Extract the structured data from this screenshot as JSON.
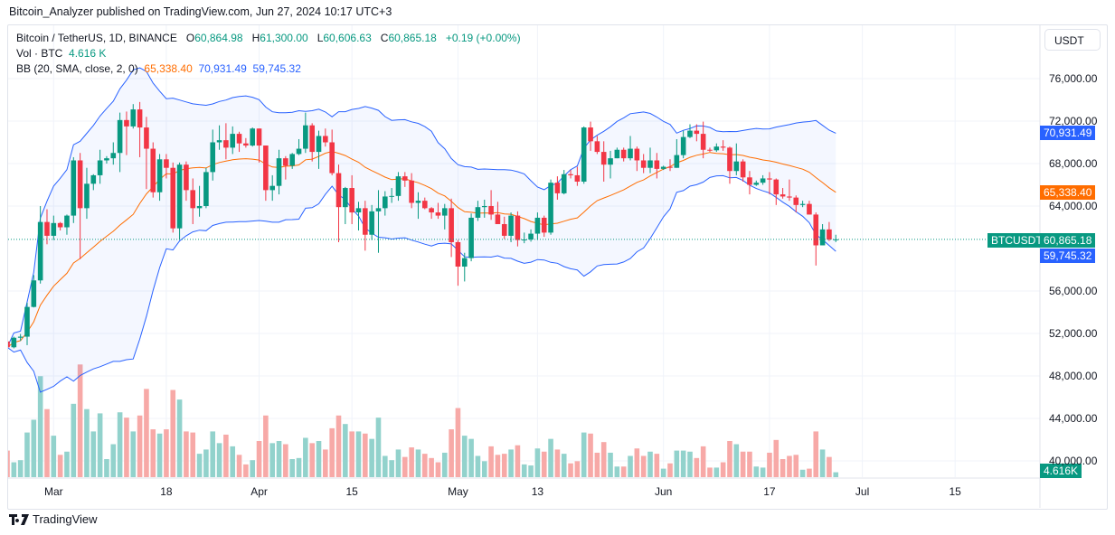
{
  "publisher_line": "Bitcoin_Analyzer published on TradingView.com, Jun 27, 2024 10:17 UTC+3",
  "legend": {
    "symbol": "Bitcoin / TetherUS, 1D, BINANCE",
    "o_label": "O",
    "o": "60,864.98",
    "h_label": "H",
    "h": "61,300.00",
    "l_label": "L",
    "l": "60,606.63",
    "c_label": "C",
    "c": "60,865.18",
    "change": "+0.19 (+0.00%)",
    "vol_label": "Vol · BTC",
    "vol": "4.616 K",
    "bb_label": "BB (20, SMA, close, 2, 0)",
    "bb_basis": "65,338.40",
    "bb_upper": "70,931.49",
    "bb_lower": "59,745.32"
  },
  "currency_button": "USDT",
  "price_tags": {
    "upper": "70,931.49",
    "basis": "65,338.40",
    "last": "60,865.18",
    "symbol": "BTCUSDT",
    "lower": "59,745.32",
    "volume": "4.616K"
  },
  "brand": "TradingView",
  "colors": {
    "up": "#089981",
    "down": "#f23645",
    "vol_up": "#92d2cc",
    "vol_down": "#f7a9a7",
    "bb_band": "#2962ff",
    "bb_basis": "#ff6d00"
  },
  "chart_data": {
    "type": "candlestick",
    "yticks": [
      "76,000.00",
      "72,000.00",
      "68,000.00",
      "64,000.00",
      "56,000.00",
      "52,000.00",
      "48,000.00",
      "44,000.00",
      "40,000.00"
    ],
    "ytick_values": [
      76000,
      72000,
      68000,
      64000,
      56000,
      52000,
      48000,
      44000,
      40000
    ],
    "xticks": [
      {
        "label": "Mar",
        "date": "2024-03-01"
      },
      {
        "label": "18",
        "date": "2024-03-18"
      },
      {
        "label": "Apr",
        "date": "2024-04-01"
      },
      {
        "label": "15",
        "date": "2024-04-15"
      },
      {
        "label": "May",
        "date": "2024-05-01"
      },
      {
        "label": "13",
        "date": "2024-05-13"
      },
      {
        "label": "Jun",
        "date": "2024-06-01"
      },
      {
        "label": "17",
        "date": "2024-06-17"
      },
      {
        "label": "Jul",
        "date": "2024-07-01"
      },
      {
        "label": "15",
        "date": "2024-07-15"
      }
    ],
    "indicator": {
      "name": "BB",
      "length": 20,
      "ma": "SMA",
      "source": "close",
      "mult": 2,
      "offset": 0
    },
    "volume_unit": "K BTC",
    "grid": true,
    "candles_columns": [
      "date",
      "open",
      "high",
      "low",
      "close",
      "volume"
    ],
    "candles": [
      [
        "2024-02-23",
        51250,
        51500,
        50500,
        50700,
        25
      ],
      [
        "2024-02-24",
        50700,
        51700,
        50600,
        51600,
        14
      ],
      [
        "2024-02-25",
        51600,
        51950,
        51300,
        51700,
        16
      ],
      [
        "2024-02-26",
        51700,
        54900,
        50900,
        54500,
        42
      ],
      [
        "2024-02-27",
        54500,
        57500,
        54450,
        57000,
        54
      ],
      [
        "2024-02-28",
        57000,
        64000,
        56700,
        62500,
        95
      ],
      [
        "2024-02-29",
        62500,
        63700,
        60400,
        61200,
        64
      ],
      [
        "2024-03-01",
        61200,
        63100,
        60800,
        62400,
        39
      ],
      [
        "2024-03-02",
        62400,
        62500,
        61700,
        62000,
        21
      ],
      [
        "2024-03-03",
        62000,
        63200,
        61300,
        63100,
        24
      ],
      [
        "2024-03-04",
        63100,
        68600,
        62400,
        68300,
        69
      ],
      [
        "2024-03-05",
        68300,
        69000,
        59000,
        63800,
        106
      ],
      [
        "2024-03-06",
        63800,
        67600,
        62800,
        66100,
        64
      ],
      [
        "2024-03-07",
        66100,
        67000,
        65500,
        66900,
        43
      ],
      [
        "2024-03-08",
        66900,
        69300,
        66100,
        68300,
        60
      ],
      [
        "2024-03-09",
        68300,
        68700,
        68000,
        68500,
        17
      ],
      [
        "2024-03-10",
        68500,
        70000,
        67900,
        69000,
        31
      ],
      [
        "2024-03-11",
        69000,
        72800,
        67200,
        72100,
        61
      ],
      [
        "2024-03-12",
        72100,
        72900,
        68800,
        71500,
        56
      ],
      [
        "2024-03-13",
        71500,
        73600,
        71300,
        73100,
        43
      ],
      [
        "2024-03-14",
        73100,
        73800,
        68600,
        71400,
        58
      ],
      [
        "2024-03-15",
        71400,
        72400,
        65600,
        69400,
        83
      ],
      [
        "2024-03-16",
        69400,
        70000,
        64800,
        65300,
        45
      ],
      [
        "2024-03-17",
        65300,
        68900,
        64500,
        68400,
        41
      ],
      [
        "2024-03-18",
        68400,
        68900,
        66600,
        67600,
        45
      ],
      [
        "2024-03-19",
        67600,
        68100,
        61500,
        61900,
        82
      ],
      [
        "2024-03-20",
        61900,
        68100,
        60800,
        67900,
        73
      ],
      [
        "2024-03-21",
        67900,
        68200,
        64500,
        65500,
        43
      ],
      [
        "2024-03-22",
        65500,
        66600,
        62300,
        63800,
        42
      ],
      [
        "2024-03-23",
        63800,
        65900,
        63000,
        64000,
        22
      ],
      [
        "2024-03-24",
        64000,
        67600,
        63800,
        67200,
        26
      ],
      [
        "2024-03-25",
        67200,
        71200,
        66400,
        70000,
        43
      ],
      [
        "2024-03-26",
        70000,
        71600,
        69300,
        70200,
        32
      ],
      [
        "2024-03-27",
        70200,
        71800,
        68400,
        69500,
        40
      ],
      [
        "2024-03-28",
        69500,
        71500,
        68900,
        70800,
        29
      ],
      [
        "2024-03-29",
        70800,
        71000,
        69100,
        69900,
        21
      ],
      [
        "2024-03-30",
        69900,
        70400,
        69500,
        69700,
        12
      ],
      [
        "2024-03-31",
        69700,
        71400,
        69600,
        71300,
        16
      ],
      [
        "2024-04-01",
        71300,
        71300,
        68100,
        69700,
        34
      ],
      [
        "2024-04-02",
        69700,
        69700,
        64500,
        65500,
        58
      ],
      [
        "2024-04-03",
        65500,
        66900,
        64500,
        65900,
        32
      ],
      [
        "2024-04-04",
        65900,
        69300,
        65100,
        68500,
        34
      ],
      [
        "2024-04-05",
        68500,
        68700,
        66500,
        67800,
        31
      ],
      [
        "2024-04-06",
        67800,
        69000,
        67500,
        68900,
        17
      ],
      [
        "2024-04-07",
        68900,
        70300,
        68800,
        69400,
        18
      ],
      [
        "2024-04-08",
        69400,
        72800,
        69000,
        71600,
        37
      ],
      [
        "2024-04-09",
        71600,
        71800,
        68200,
        69100,
        32
      ],
      [
        "2024-04-10",
        69100,
        71100,
        67500,
        70600,
        34
      ],
      [
        "2024-04-11",
        70600,
        71300,
        69600,
        70000,
        26
      ],
      [
        "2024-04-12",
        70000,
        71200,
        66900,
        67100,
        46
      ],
      [
        "2024-04-13",
        67100,
        67900,
        60600,
        63900,
        58
      ],
      [
        "2024-04-14",
        63900,
        65800,
        62300,
        65700,
        50
      ],
      [
        "2024-04-15",
        65700,
        66900,
        62300,
        63400,
        43
      ],
      [
        "2024-04-16",
        63400,
        64400,
        61700,
        63800,
        43
      ],
      [
        "2024-04-17",
        63800,
        64500,
        59800,
        61300,
        41
      ],
      [
        "2024-04-18",
        61300,
        64100,
        60800,
        63500,
        36
      ],
      [
        "2024-04-19",
        63500,
        65500,
        59600,
        63800,
        56
      ],
      [
        "2024-04-20",
        63800,
        65400,
        63100,
        64900,
        20
      ],
      [
        "2024-04-21",
        64900,
        65700,
        64300,
        64950,
        16
      ],
      [
        "2024-04-22",
        64950,
        67200,
        64500,
        66800,
        26
      ],
      [
        "2024-04-23",
        66800,
        67200,
        65800,
        66400,
        19
      ],
      [
        "2024-04-24",
        66400,
        67100,
        63800,
        64300,
        28
      ],
      [
        "2024-04-25",
        64300,
        65300,
        62800,
        64500,
        26
      ],
      [
        "2024-04-26",
        64500,
        64800,
        63700,
        63800,
        22
      ],
      [
        "2024-04-27",
        63800,
        63900,
        62800,
        63400,
        18
      ],
      [
        "2024-04-28",
        63400,
        64300,
        62800,
        63100,
        14
      ],
      [
        "2024-04-29",
        63100,
        64200,
        61800,
        63800,
        23
      ],
      [
        "2024-04-30",
        63800,
        64700,
        59200,
        60600,
        45
      ],
      [
        "2024-05-01",
        60600,
        60800,
        56500,
        58300,
        65
      ],
      [
        "2024-05-02",
        58300,
        59600,
        56900,
        59100,
        39
      ],
      [
        "2024-05-03",
        59100,
        63300,
        58800,
        62900,
        36
      ],
      [
        "2024-05-04",
        62900,
        64500,
        62600,
        63900,
        20
      ],
      [
        "2024-05-05",
        63900,
        64600,
        62900,
        64000,
        15
      ],
      [
        "2024-05-06",
        64000,
        65500,
        62700,
        63200,
        29
      ],
      [
        "2024-05-07",
        63200,
        64400,
        62300,
        62300,
        21
      ],
      [
        "2024-05-08",
        62300,
        63000,
        60900,
        61200,
        22
      ],
      [
        "2024-05-09",
        61200,
        63400,
        60600,
        63100,
        26
      ],
      [
        "2024-05-10",
        63100,
        63500,
        60200,
        60800,
        30
      ],
      [
        "2024-05-11",
        60800,
        61500,
        60500,
        60850,
        12
      ],
      [
        "2024-05-12",
        60850,
        61800,
        60650,
        61400,
        11
      ],
      [
        "2024-05-13",
        61400,
        63400,
        60800,
        62900,
        27
      ],
      [
        "2024-05-14",
        62900,
        63100,
        61100,
        61500,
        24
      ],
      [
        "2024-05-15",
        61500,
        66500,
        61300,
        66200,
        36
      ],
      [
        "2024-05-16",
        66200,
        66800,
        64600,
        65200,
        26
      ],
      [
        "2024-05-17",
        65200,
        67400,
        65100,
        67000,
        22
      ],
      [
        "2024-05-18",
        67000,
        67400,
        66600,
        66900,
        13
      ],
      [
        "2024-05-19",
        66900,
        67700,
        65900,
        66300,
        15
      ],
      [
        "2024-05-20",
        66300,
        71500,
        66100,
        71400,
        42
      ],
      [
        "2024-05-21",
        71400,
        71950,
        69200,
        70100,
        41
      ],
      [
        "2024-05-22",
        70100,
        70600,
        68900,
        69100,
        23
      ],
      [
        "2024-05-23",
        69100,
        70100,
        66300,
        67900,
        33
      ],
      [
        "2024-05-24",
        67900,
        69200,
        66600,
        68500,
        23
      ],
      [
        "2024-05-25",
        68500,
        69500,
        68500,
        69300,
        10
      ],
      [
        "2024-05-26",
        69300,
        69500,
        68200,
        68500,
        10
      ],
      [
        "2024-05-27",
        68500,
        70600,
        68300,
        69400,
        20
      ],
      [
        "2024-05-28",
        69400,
        69600,
        67300,
        68300,
        27
      ],
      [
        "2024-05-29",
        68300,
        68900,
        67100,
        67600,
        20
      ],
      [
        "2024-05-30",
        67600,
        69500,
        67100,
        68300,
        24
      ],
      [
        "2024-05-31",
        68300,
        69000,
        66600,
        67500,
        22
      ],
      [
        "2024-06-01",
        67500,
        67800,
        67400,
        67700,
        8
      ],
      [
        "2024-06-02",
        67700,
        68400,
        67300,
        67600,
        13
      ],
      [
        "2024-06-03",
        67600,
        70300,
        67600,
        68800,
        25
      ],
      [
        "2024-06-04",
        68800,
        71100,
        68500,
        70500,
        25
      ],
      [
        "2024-06-05",
        70500,
        71700,
        70400,
        71100,
        24
      ],
      [
        "2024-06-06",
        71100,
        71700,
        70100,
        70800,
        18
      ],
      [
        "2024-06-07",
        70800,
        71950,
        68500,
        69300,
        29
      ],
      [
        "2024-06-08",
        69300,
        69500,
        69100,
        69250,
        9
      ],
      [
        "2024-06-09",
        69250,
        69900,
        69100,
        69600,
        9
      ],
      [
        "2024-06-10",
        69600,
        70200,
        69200,
        69500,
        14
      ],
      [
        "2024-06-11",
        69500,
        69600,
        66100,
        67300,
        34
      ],
      [
        "2024-06-12",
        67300,
        69900,
        66900,
        68200,
        31
      ],
      [
        "2024-06-13",
        68200,
        68400,
        66300,
        66700,
        24
      ],
      [
        "2024-06-14",
        66700,
        67300,
        65100,
        66000,
        24
      ],
      [
        "2024-06-15",
        66000,
        66400,
        65900,
        66200,
        10
      ],
      [
        "2024-06-16",
        66200,
        66900,
        66000,
        66600,
        9
      ],
      [
        "2024-06-17",
        66600,
        67200,
        65100,
        66500,
        23
      ],
      [
        "2024-06-18",
        66500,
        66600,
        64100,
        65100,
        35
      ],
      [
        "2024-06-19",
        65100,
        65700,
        64700,
        64900,
        17
      ],
      [
        "2024-06-20",
        64900,
        66500,
        64500,
        64800,
        20
      ],
      [
        "2024-06-21",
        64800,
        65000,
        63400,
        64100,
        21
      ],
      [
        "2024-06-22",
        64100,
        64500,
        63900,
        64200,
        7
      ],
      [
        "2024-06-23",
        64200,
        64500,
        63200,
        63200,
        8
      ],
      [
        "2024-06-24",
        63200,
        63400,
        58400,
        60300,
        43
      ],
      [
        "2024-06-25",
        60300,
        62300,
        60300,
        61800,
        26
      ],
      [
        "2024-06-26",
        61800,
        62500,
        60700,
        60850,
        19
      ],
      [
        "2024-06-27",
        60864.98,
        61300,
        60606.63,
        60865.18,
        4.616
      ]
    ]
  }
}
